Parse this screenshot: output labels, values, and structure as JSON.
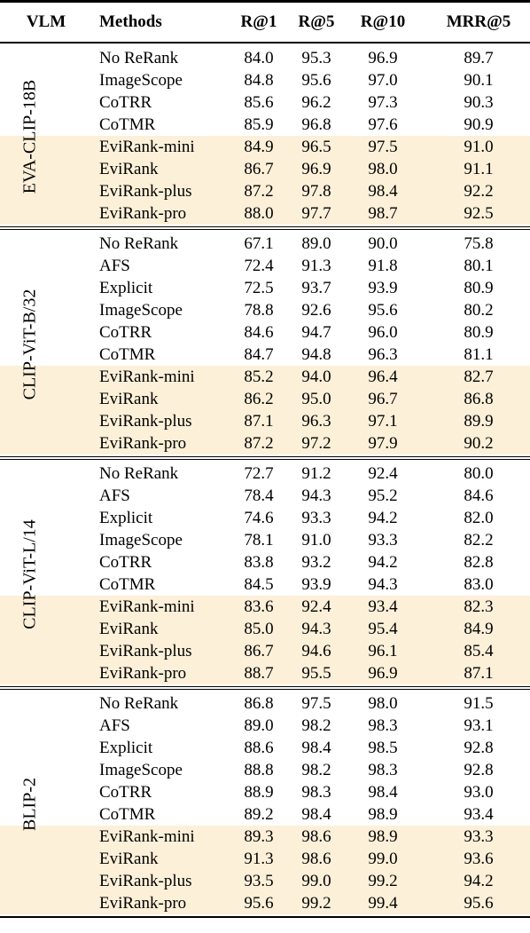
{
  "table": {
    "header": [
      "VLM",
      "Methods",
      "R@1",
      "R@5",
      "R@10",
      "MRR@5"
    ],
    "highlight_color": "#fdf0d9",
    "groups": [
      {
        "vlm": "EVA-CLIP-18B",
        "highlighted_rows": [
          4,
          5,
          6,
          7
        ],
        "rows": [
          [
            "No ReRank",
            "84.0",
            "95.3",
            "96.9",
            "89.7"
          ],
          [
            "ImageScope",
            "84.8",
            "95.6",
            "97.0",
            "90.1"
          ],
          [
            "CoTRR",
            "85.6",
            "96.2",
            "97.3",
            "90.3"
          ],
          [
            "CoTMR",
            "85.9",
            "96.8",
            "97.6",
            "90.9"
          ],
          [
            "EviRank-mini",
            "84.9",
            "96.5",
            "97.5",
            "91.0"
          ],
          [
            "EviRank",
            "86.7",
            "96.9",
            "98.0",
            "91.1"
          ],
          [
            "EviRank-plus",
            "87.2",
            "97.8",
            "98.4",
            "92.2"
          ],
          [
            "EviRank-pro",
            "88.0",
            "97.7",
            "98.7",
            "92.5"
          ]
        ]
      },
      {
        "vlm": "CLIP-ViT-B/32",
        "highlighted_rows": [
          6,
          7,
          8,
          9
        ],
        "rows": [
          [
            "No ReRank",
            "67.1",
            "89.0",
            "90.0",
            "75.8"
          ],
          [
            "AFS",
            "72.4",
            "91.3",
            "91.8",
            "80.1"
          ],
          [
            "Explicit",
            "72.5",
            "93.7",
            "93.9",
            "80.9"
          ],
          [
            "ImageScope",
            "78.8",
            "92.6",
            "95.6",
            "80.2"
          ],
          [
            "CoTRR",
            "84.6",
            "94.7",
            "96.0",
            "80.9"
          ],
          [
            "CoTMR",
            "84.7",
            "94.8",
            "96.3",
            "81.1"
          ],
          [
            "EviRank-mini",
            "85.2",
            "94.0",
            "96.4",
            "82.7"
          ],
          [
            "EviRank",
            "86.2",
            "95.0",
            "96.7",
            "86.8"
          ],
          [
            "EviRank-plus",
            "87.1",
            "96.3",
            "97.1",
            "89.9"
          ],
          [
            "EviRank-pro",
            "87.2",
            "97.2",
            "97.9",
            "90.2"
          ]
        ]
      },
      {
        "vlm": "CLIP-ViT-L/14",
        "highlighted_rows": [
          6,
          7,
          8,
          9
        ],
        "rows": [
          [
            "No ReRank",
            "72.7",
            "91.2",
            "92.4",
            "80.0"
          ],
          [
            "AFS",
            "78.4",
            "94.3",
            "95.2",
            "84.6"
          ],
          [
            "Explicit",
            "74.6",
            "93.3",
            "94.2",
            "82.0"
          ],
          [
            "ImageScope",
            "78.1",
            "91.0",
            "93.3",
            "82.2"
          ],
          [
            "CoTRR",
            "83.8",
            "93.2",
            "94.2",
            "82.8"
          ],
          [
            "CoTMR",
            "84.5",
            "93.9",
            "94.3",
            "83.0"
          ],
          [
            "EviRank-mini",
            "83.6",
            "92.4",
            "93.4",
            "82.3"
          ],
          [
            "EviRank",
            "85.0",
            "94.3",
            "95.4",
            "84.9"
          ],
          [
            "EviRank-plus",
            "86.7",
            "94.6",
            "96.1",
            "85.4"
          ],
          [
            "EviRank-pro",
            "88.7",
            "95.5",
            "96.9",
            "87.1"
          ]
        ]
      },
      {
        "vlm": "BLIP-2",
        "highlighted_rows": [
          6,
          7,
          8,
          9
        ],
        "rows": [
          [
            "No ReRank",
            "86.8",
            "97.5",
            "98.0",
            "91.5"
          ],
          [
            "AFS",
            "89.0",
            "98.2",
            "98.3",
            "93.1"
          ],
          [
            "Explicit",
            "88.6",
            "98.4",
            "98.5",
            "92.8"
          ],
          [
            "ImageScope",
            "88.8",
            "98.2",
            "98.3",
            "92.8"
          ],
          [
            "CoTRR",
            "88.9",
            "98.3",
            "98.4",
            "93.0"
          ],
          [
            "CoTMR",
            "89.2",
            "98.4",
            "98.9",
            "93.4"
          ],
          [
            "EviRank-mini",
            "89.3",
            "98.6",
            "98.9",
            "93.3"
          ],
          [
            "EviRank",
            "91.3",
            "98.6",
            "99.0",
            "93.6"
          ],
          [
            "EviRank-plus",
            "93.5",
            "99.0",
            "99.2",
            "94.2"
          ],
          [
            "EviRank-pro",
            "95.6",
            "99.2",
            "99.4",
            "95.6"
          ]
        ]
      }
    ]
  }
}
